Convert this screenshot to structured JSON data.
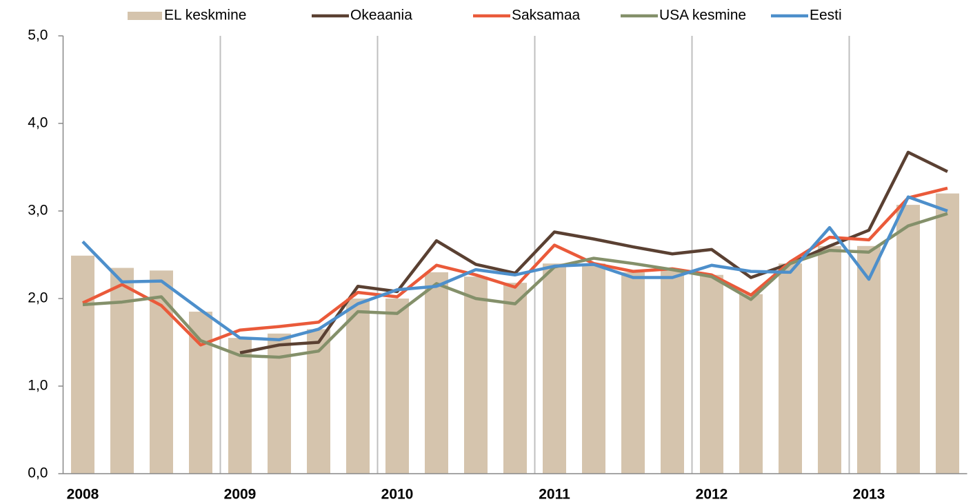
{
  "chart_data": {
    "type": "bar",
    "categories": [
      "2008",
      null,
      null,
      null,
      "2009",
      null,
      null,
      null,
      "2010",
      null,
      null,
      null,
      "2011",
      null,
      null,
      null,
      "2012",
      null,
      null,
      null,
      "2013",
      null,
      null
    ],
    "ylim": [
      0,
      5
    ],
    "yticks": [
      {
        "value": 0,
        "label": "0,0"
      },
      {
        "value": 1,
        "label": "1,0"
      },
      {
        "value": 2,
        "label": "2,0"
      },
      {
        "value": 3,
        "label": "3,0"
      },
      {
        "value": 4,
        "label": "4,0"
      },
      {
        "value": 5,
        "label": "5,0"
      }
    ],
    "series": [
      {
        "name": "EL keskmine",
        "type": "bar",
        "color": "#d5c4ad",
        "values": [
          2.49,
          2.35,
          2.32,
          1.85,
          1.55,
          1.6,
          1.65,
          2.0,
          2.0,
          2.3,
          2.25,
          2.18,
          2.4,
          2.4,
          2.3,
          2.32,
          2.27,
          2.05,
          2.4,
          2.6,
          2.6,
          3.07,
          3.2
        ]
      },
      {
        "name": "Okeaania",
        "type": "line",
        "color": "#5a4032",
        "values": [
          null,
          null,
          null,
          null,
          1.38,
          1.47,
          1.5,
          2.14,
          2.08,
          2.66,
          2.39,
          2.29,
          2.76,
          2.68,
          2.59,
          2.51,
          2.56,
          2.24,
          2.4,
          2.6,
          2.78,
          3.67,
          3.45
        ]
      },
      {
        "name": "Saksamaa",
        "type": "line",
        "color": "#ea5a3a",
        "values": [
          1.95,
          2.16,
          1.92,
          1.47,
          1.64,
          1.68,
          1.73,
          2.07,
          2.02,
          2.38,
          2.27,
          2.13,
          2.61,
          2.4,
          2.31,
          2.34,
          2.27,
          2.04,
          2.42,
          2.7,
          2.67,
          3.15,
          3.26
        ]
      },
      {
        "name": "USA kesmine",
        "type": "line",
        "color": "#84906a",
        "values": [
          1.93,
          1.96,
          2.02,
          1.52,
          1.35,
          1.33,
          1.4,
          1.85,
          1.83,
          2.17,
          2.0,
          1.94,
          2.36,
          2.46,
          2.4,
          2.33,
          2.25,
          1.99,
          2.4,
          2.55,
          2.53,
          2.83,
          2.97
        ]
      },
      {
        "name": "Eesti",
        "type": "line",
        "color": "#4d8fcb",
        "values": [
          2.65,
          2.19,
          2.2,
          1.87,
          1.55,
          1.53,
          1.65,
          1.94,
          2.1,
          2.14,
          2.33,
          2.27,
          2.37,
          2.39,
          2.24,
          2.24,
          2.38,
          2.31,
          2.3,
          2.81,
          2.22,
          3.16,
          3.0
        ]
      }
    ],
    "grid": true,
    "legend": "top"
  }
}
